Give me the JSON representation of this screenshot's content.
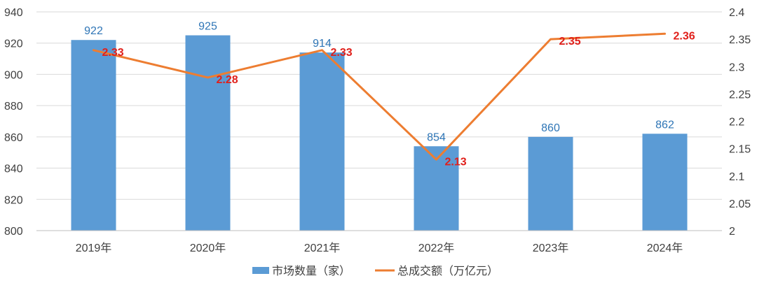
{
  "chart_data": {
    "type": "bar+line",
    "categories": [
      "2019年",
      "2020年",
      "2021年",
      "2022年",
      "2023年",
      "2024年"
    ],
    "series": [
      {
        "name": "市场数量（家）",
        "type": "bar",
        "axis": "left",
        "color": "#5b9bd5",
        "values": [
          922,
          925,
          914,
          854,
          860,
          862
        ],
        "labels": [
          "922",
          "925",
          "914",
          "854",
          "860",
          "862"
        ]
      },
      {
        "name": "总成交额（万亿元）",
        "type": "line",
        "axis": "right",
        "color": "#ed7d31",
        "values": [
          2.33,
          2.28,
          2.33,
          2.13,
          2.35,
          2.36
        ],
        "labels": [
          "2.33",
          "2.28",
          "2.33",
          "2.13",
          "2.35",
          "2.36"
        ]
      }
    ],
    "y_left": {
      "min": 800,
      "max": 940,
      "ticks": [
        "800",
        "820",
        "840",
        "860",
        "880",
        "900",
        "920",
        "940"
      ]
    },
    "y_right": {
      "min": 2.0,
      "max": 2.4,
      "ticks": [
        "2",
        "2.05",
        "2.1",
        "2.15",
        "2.2",
        "2.25",
        "2.3",
        "2.35",
        "2.4"
      ]
    },
    "grid": true,
    "legend_position": "bottom",
    "title": "",
    "xlabel": "",
    "ylabel": ""
  }
}
